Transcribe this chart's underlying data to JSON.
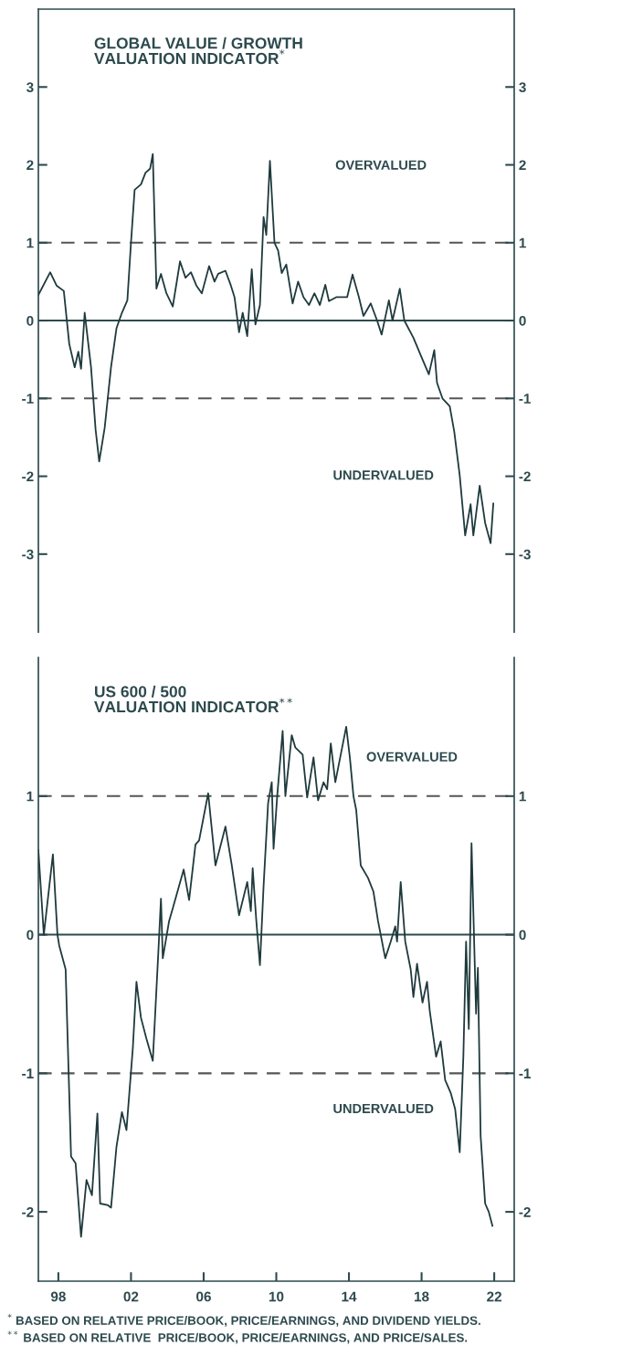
{
  "chart_data": [
    {
      "type": "line",
      "title": "GLOBAL VALUE / GROWTH\nVALUATION INDICATOR$^{*}$",
      "annotations": [
        "OVERVALUED",
        "UNDERVALUED"
      ],
      "xlim": [
        1996.9,
        2023.1
      ],
      "ylim": [
        -4,
        4
      ],
      "yticks": [
        -3,
        -2,
        -1,
        0,
        1,
        2,
        3
      ],
      "y2lim": [
        -4,
        4
      ],
      "y2ticks": [
        -3,
        -2,
        -1,
        0,
        1,
        2,
        3
      ],
      "tick_labels": "y",
      "grid": false,
      "line_style": "solid",
      "marker": "none",
      "ref_lines": [
        {
          "axis": "y",
          "value": 1,
          "label": null,
          "color": "#555555",
          "line_style": "dashed"
        },
        {
          "axis": "y",
          "value": 0,
          "label": null,
          "color": "#2d4a4e",
          "line_style": "solid"
        },
        {
          "axis": "y",
          "value": -1,
          "label": null,
          "color": "#555555",
          "line_style": "dashed"
        }
      ],
      "series": [
        {
          "color": "#1f3a3d",
          "x": [
            1996.9,
            1997.55,
            1997.9,
            1998.3,
            1998.6,
            1998.9,
            1999.1,
            1999.25,
            1999.45,
            1999.8,
            2000.05,
            2000.25,
            2000.55,
            2000.9,
            2001.2,
            2001.5,
            2001.8,
            2002.0,
            2002.2,
            2002.55,
            2002.8,
            2003.05,
            2003.2,
            2003.4,
            2003.65,
            2003.95,
            2004.3,
            2004.7,
            2005.0,
            2005.3,
            2005.6,
            2005.9,
            2006.3,
            2006.6,
            2006.8,
            2007.2,
            2007.5,
            2007.7,
            2007.95,
            2008.15,
            2008.4,
            2008.65,
            2008.85,
            2009.1,
            2009.3,
            2009.45,
            2009.65,
            2009.9,
            2010.1,
            2010.3,
            2010.55,
            2010.9,
            2011.2,
            2011.5,
            2011.8,
            2012.1,
            2012.4,
            2012.7,
            2012.9,
            2013.3,
            2013.9,
            2014.2,
            2014.55,
            2014.8,
            2015.2,
            2015.55,
            2015.8,
            2016.2,
            2016.4,
            2016.8,
            2017.05,
            2017.55,
            2018.05,
            2018.4,
            2018.7,
            2018.85,
            2019.15,
            2019.55,
            2019.8,
            2020.1,
            2020.4,
            2020.7,
            2020.85,
            2021.2,
            2021.5,
            2021.8,
            2021.95
          ],
          "values": [
            0.33,
            0.62,
            0.45,
            0.38,
            -0.3,
            -0.6,
            -0.4,
            -0.62,
            0.1,
            -0.6,
            -1.4,
            -1.81,
            -1.38,
            -0.6,
            -0.1,
            0.1,
            0.26,
            1.0,
            1.68,
            1.75,
            1.9,
            1.95,
            2.14,
            0.41,
            0.6,
            0.35,
            0.18,
            0.76,
            0.55,
            0.62,
            0.45,
            0.35,
            0.7,
            0.5,
            0.6,
            0.64,
            0.45,
            0.3,
            -0.15,
            0.1,
            -0.2,
            0.66,
            -0.05,
            0.2,
            1.33,
            1.1,
            2.05,
            1.0,
            0.9,
            0.61,
            0.72,
            0.22,
            0.5,
            0.3,
            0.2,
            0.35,
            0.2,
            0.46,
            0.25,
            0.3,
            0.3,
            0.59,
            0.3,
            0.06,
            0.22,
            0.0,
            -0.18,
            0.26,
            0.0,
            0.41,
            0.0,
            -0.22,
            -0.5,
            -0.69,
            -0.38,
            -0.8,
            -1.0,
            -1.1,
            -1.43,
            -1.99,
            -2.76,
            -2.36,
            -2.76,
            -2.12,
            -2.6,
            -2.86,
            -2.35
          ]
        }
      ]
    },
    {
      "type": "line",
      "title": "US 600 / 500\nVALUATION INDICATOR$^{**}$",
      "annotations": [
        "OVERVALUED",
        "UNDERVALUED",
        "$^{*}$ BASED ON RELATIVE PRICE/BOOK, PRICE/EARNINGS, AND DIVIDEND YIELDS.",
        "$^{**}$ BASED ON RELATIVE  PRICE/BOOK, PRICE/EARNINGS, AND PRICE/SALES."
      ],
      "xlim": [
        1996.9,
        2023.1
      ],
      "xticks": [
        {
          "value": 1998,
          "label": "98"
        },
        {
          "value": 2002,
          "label": "02"
        },
        {
          "value": 2006,
          "label": "06"
        },
        {
          "value": 2010,
          "label": "10"
        },
        {
          "value": 2014,
          "label": "14"
        },
        {
          "value": 2018,
          "label": "18"
        },
        {
          "value": 2022,
          "label": "22"
        }
      ],
      "ylim": [
        -2.5,
        2.0
      ],
      "yticks": [
        -2,
        -1,
        0,
        1
      ],
      "y2lim": [
        -2.5,
        2.0
      ],
      "y2ticks": [
        -2,
        -1,
        0,
        1
      ],
      "grid": false,
      "line_style": "solid",
      "marker": "none",
      "ref_lines": [
        {
          "axis": "y",
          "value": 1,
          "label": null,
          "color": "#555555",
          "line_style": "dashed"
        },
        {
          "axis": "y",
          "value": 0,
          "label": null,
          "color": "#2d4a4e",
          "line_style": "solid"
        },
        {
          "axis": "y",
          "value": -1,
          "label": null,
          "color": "#555555",
          "line_style": "dashed"
        }
      ],
      "series": [
        {
          "color": "#1f3a3d",
          "x": [
            1996.9,
            1997.2,
            1997.7,
            1997.95,
            1998.05,
            1998.4,
            1998.7,
            1998.95,
            1999.25,
            1999.55,
            1999.85,
            2000.15,
            2000.3,
            2000.7,
            2000.9,
            2001.2,
            2001.5,
            2001.75,
            2002.1,
            2002.3,
            2002.55,
            2002.85,
            2003.2,
            2003.5,
            2003.65,
            2003.75,
            2004.1,
            2004.3,
            2004.9,
            2005.2,
            2005.55,
            2005.75,
            2006.25,
            2006.65,
            2007.2,
            2007.55,
            2007.95,
            2008.4,
            2008.6,
            2008.7,
            2008.9,
            2009.1,
            2009.3,
            2009.55,
            2009.75,
            2009.85,
            2010.05,
            2010.35,
            2010.5,
            2010.85,
            2011.05,
            2011.45,
            2011.7,
            2012.05,
            2012.3,
            2012.6,
            2012.8,
            2013.0,
            2013.25,
            2013.85,
            2014.05,
            2014.25,
            2014.4,
            2014.65,
            2015.05,
            2015.35,
            2015.6,
            2016.0,
            2016.3,
            2016.55,
            2016.65,
            2016.85,
            2017.1,
            2017.4,
            2017.55,
            2017.75,
            2018.05,
            2018.3,
            2018.45,
            2018.8,
            2019.05,
            2019.3,
            2019.6,
            2019.85,
            2020.1,
            2020.3,
            2020.45,
            2020.6,
            2020.75,
            2021.0,
            2021.1,
            2021.25,
            2021.5,
            2021.7,
            2021.9
          ],
          "values": [
            0.61,
            0.0,
            0.58,
            0.0,
            -0.08,
            -0.25,
            -1.6,
            -1.65,
            -2.18,
            -1.77,
            -1.88,
            -1.29,
            -1.94,
            -1.95,
            -1.97,
            -1.53,
            -1.28,
            -1.41,
            -0.82,
            -0.34,
            -0.6,
            -0.75,
            -0.91,
            -0.14,
            0.26,
            -0.17,
            0.1,
            0.19,
            0.47,
            0.25,
            0.65,
            0.68,
            1.02,
            0.5,
            0.78,
            0.5,
            0.14,
            0.38,
            0.17,
            0.48,
            0.1,
            -0.22,
            0.35,
            0.95,
            1.1,
            0.62,
            1.0,
            1.47,
            1.0,
            1.44,
            1.35,
            1.3,
            0.99,
            1.28,
            0.97,
            1.1,
            1.05,
            1.38,
            1.1,
            1.5,
            1.28,
            1.0,
            0.9,
            0.5,
            0.41,
            0.31,
            0.1,
            -0.17,
            -0.05,
            0.06,
            -0.05,
            0.38,
            -0.05,
            -0.25,
            -0.45,
            -0.21,
            -0.49,
            -0.34,
            -0.55,
            -0.88,
            -0.77,
            -1.05,
            -1.14,
            -1.26,
            -1.57,
            -0.88,
            -0.05,
            -0.68,
            0.66,
            -0.57,
            -0.24,
            -1.45,
            -1.94,
            -2.0,
            -2.1
          ]
        }
      ]
    }
  ]
}
